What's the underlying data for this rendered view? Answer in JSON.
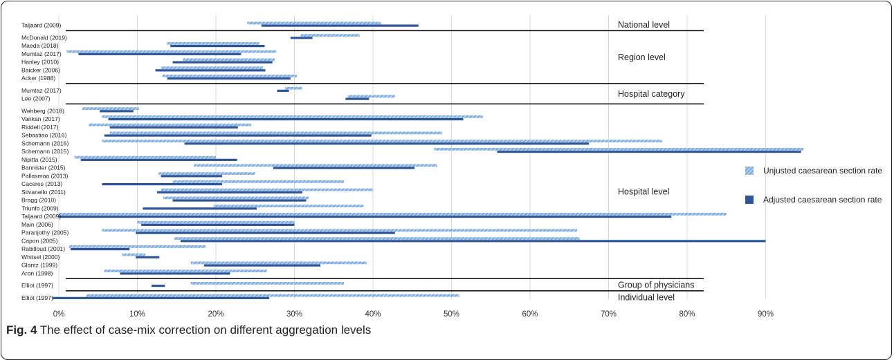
{
  "chart_data": {
    "type": "bar",
    "orientation": "horizontal-range",
    "title": "",
    "xlabel": "",
    "ylabel": "",
    "xlim": [
      0,
      95
    ],
    "x_ticks": [
      "0%",
      "10%",
      "20%",
      "30%",
      "40%",
      "50%",
      "60%",
      "70%",
      "80%",
      "90%"
    ],
    "x_tick_values": [
      0,
      10,
      20,
      30,
      40,
      50,
      60,
      70,
      80,
      90
    ],
    "grid": "vertical",
    "legend_position": "right",
    "colors": {
      "unadjusted": "#6fa8dc",
      "adjusted": "#2f5597",
      "grid": "#d9d9d9",
      "separator": "#000000"
    },
    "series": [
      {
        "name": "Unjusted caesarean section rate",
        "key": "unadjusted",
        "pattern": "hatched-light-blue"
      },
      {
        "name": "Adjusted caesarean section rate",
        "key": "adjusted",
        "pattern": "solid-dark-blue"
      }
    ],
    "groups": [
      {
        "label": "National level",
        "studies": [
          {
            "name": "Taljaard (2009)",
            "unadjusted": [
              24.0,
              41.0
            ],
            "adjusted": [
              25.8,
              45.8
            ]
          }
        ]
      },
      {
        "label": "Region level",
        "studies": [
          {
            "name": "McDonald (2019)",
            "unadjusted": [
              30.8,
              38.3
            ],
            "adjusted": [
              29.5,
              32.3
            ]
          },
          {
            "name": "Maeda (2018)",
            "unadjusted": [
              13.8,
              25.5
            ],
            "adjusted": [
              14.2,
              26.2
            ]
          },
          {
            "name": "Mumtaz (2017)",
            "unadjusted": [
              1.0,
              27.7
            ],
            "adjusted": [
              2.5,
              23.2
            ]
          },
          {
            "name": "Hanley (2010)",
            "unadjusted": [
              15.8,
              27.5
            ],
            "adjusted": [
              14.5,
              27.2
            ]
          },
          {
            "name": "Baicker (2006)",
            "unadjusted": [
              13.0,
              26.0
            ],
            "adjusted": [
              12.3,
              26.3
            ]
          },
          {
            "name": "Acker (1988)",
            "unadjusted": [
              13.2,
              30.3
            ],
            "adjusted": [
              13.8,
              29.5
            ]
          }
        ]
      },
      {
        "label": "Hospital category",
        "studies": [
          {
            "name": "Mumtaz (2017)",
            "unadjusted": [
              28.8,
              31.0
            ],
            "adjusted": [
              27.8,
              29.3
            ]
          },
          {
            "name": "Lee (2007)",
            "unadjusted": [
              36.8,
              42.8
            ],
            "adjusted": [
              36.5,
              39.5
            ]
          }
        ]
      },
      {
        "label": "Hospital level",
        "studies": [
          {
            "name": "Wehberg (2018)",
            "unadjusted": [
              3.0,
              10.2
            ],
            "adjusted": [
              5.2,
              9.5
            ]
          },
          {
            "name": "Vankan (2017)",
            "unadjusted": [
              5.5,
              54.0
            ],
            "adjusted": [
              6.3,
              51.5
            ]
          },
          {
            "name": "Riddell (2017)",
            "unadjusted": [
              3.8,
              24.5
            ],
            "adjusted": [
              6.5,
              22.8
            ]
          },
          {
            "name": "Sebastiao (2016)",
            "unadjusted": [
              6.5,
              48.8
            ],
            "adjusted": [
              5.8,
              39.8
            ]
          },
          {
            "name": "Schemann (2016)",
            "unadjusted": [
              5.5,
              76.8
            ],
            "adjusted": [
              16.0,
              67.5
            ]
          },
          {
            "name": "Schemann (2015)",
            "unadjusted": [
              47.8,
              94.8
            ],
            "adjusted": [
              55.8,
              94.5
            ]
          },
          {
            "name": "Nipitta (2015)",
            "unadjusted": [
              2.0,
              20.0
            ],
            "adjusted": [
              2.8,
              22.7
            ]
          },
          {
            "name": "Bannister (2015)",
            "unadjusted": [
              17.2,
              48.2
            ],
            "adjusted": [
              27.3,
              45.3
            ]
          },
          {
            "name": "Pallasmaa (2013)",
            "unadjusted": [
              12.7,
              25.0
            ],
            "adjusted": [
              13.0,
              20.8
            ]
          },
          {
            "name": "Caceres (2013)",
            "unadjusted": [
              14.5,
              36.3
            ],
            "adjusted": [
              5.5,
              20.8
            ]
          },
          {
            "name": "Stivanello (2011)",
            "unadjusted": [
              13.0,
              40.0
            ],
            "adjusted": [
              12.5,
              31.0
            ]
          },
          {
            "name": "Bragg (2010)",
            "unadjusted": [
              13.3,
              31.8
            ],
            "adjusted": [
              14.5,
              31.5
            ]
          },
          {
            "name": "Triunfo (2009)",
            "unadjusted": [
              19.7,
              38.8
            ],
            "adjusted": [
              10.7,
              25.2
            ]
          },
          {
            "name": "Taljaard (2009)",
            "unadjusted": [
              0.0,
              85.0
            ],
            "adjusted": [
              0.0,
              78.0
            ]
          },
          {
            "name": "Main (2006)",
            "unadjusted": [
              10.0,
              30.0
            ],
            "adjusted": [
              10.5,
              30.0
            ]
          },
          {
            "name": "Paranjothy (2005)",
            "unadjusted": [
              5.5,
              66.0
            ],
            "adjusted": [
              9.8,
              42.8
            ]
          },
          {
            "name": "Capon (2005)",
            "unadjusted": [
              14.7,
              66.3
            ],
            "adjusted": [
              15.5,
              90.0
            ]
          },
          {
            "name": "Rabilloud (2001)",
            "unadjusted": [
              1.3,
              18.7
            ],
            "adjusted": [
              1.5,
              9.0
            ]
          },
          {
            "name": "Whitsel (2000)",
            "unadjusted": [
              8.0,
              11.0
            ],
            "adjusted": [
              9.8,
              12.8
            ]
          },
          {
            "name": "Glantz (1999)",
            "unadjusted": [
              16.8,
              39.2
            ],
            "adjusted": [
              18.5,
              33.3
            ]
          },
          {
            "name": "Aron (1998)",
            "unadjusted": [
              5.8,
              26.5
            ],
            "adjusted": [
              7.8,
              21.8
            ]
          }
        ]
      },
      {
        "label": "Group of physicians",
        "studies": [
          {
            "name": "Elliot (1997)",
            "unadjusted": [
              16.8,
              36.3
            ],
            "adjusted": [
              11.8,
              13.5
            ]
          }
        ]
      },
      {
        "label": "Individual level",
        "studies": [
          {
            "name": "Elliot (1997)",
            "unadjusted": [
              3.5,
              51.0
            ],
            "adjusted": [
              -0.8,
              26.8
            ]
          }
        ]
      }
    ]
  },
  "caption": {
    "label": "Fig. 4",
    "text": " The effect of case-mix correction on different aggregation levels"
  }
}
